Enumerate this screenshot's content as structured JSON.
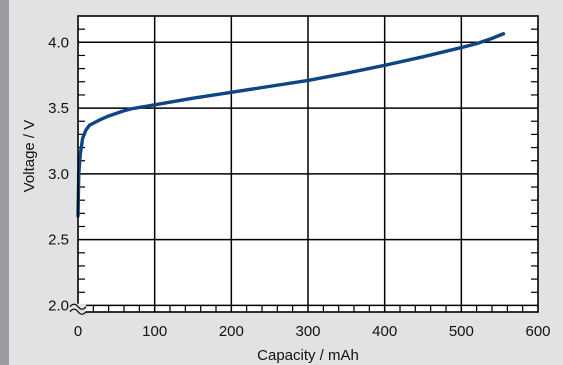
{
  "chart_data": {
    "type": "line",
    "title": "",
    "xlabel": "Capacity / mAh",
    "ylabel": "Voltage / V",
    "xlim": [
      0,
      600
    ],
    "ylim": [
      1.95,
      4.2
    ],
    "axis_break_y": true,
    "grid": true,
    "x_major_ticks": [
      0,
      100,
      200,
      300,
      400,
      500,
      600
    ],
    "x_tick_labels": [
      "0",
      "100",
      "200",
      "300",
      "400",
      "500",
      "600"
    ],
    "x_minor_step": 20,
    "y_major_ticks": [
      2.0,
      2.5,
      3.0,
      3.5,
      4.0
    ],
    "y_tick_labels": [
      "2.0",
      "2.5",
      "3.0",
      "3.5",
      "4.0"
    ],
    "y_minor_step": 0.1,
    "line_color": "#0e4584",
    "background_color": "#ffffff",
    "series": [
      {
        "x": [
          0,
          1,
          3,
          6,
          10,
          15,
          20,
          30,
          40,
          50,
          60,
          70,
          80,
          90,
          100,
          150,
          200,
          250,
          300,
          350,
          400,
          450,
          500,
          520,
          540,
          555
        ],
        "y": [
          2.68,
          3.0,
          3.15,
          3.27,
          3.33,
          3.37,
          3.385,
          3.415,
          3.44,
          3.46,
          3.48,
          3.495,
          3.505,
          3.515,
          3.525,
          3.575,
          3.62,
          3.665,
          3.71,
          3.765,
          3.825,
          3.89,
          3.96,
          3.99,
          4.03,
          4.065
        ]
      }
    ]
  }
}
